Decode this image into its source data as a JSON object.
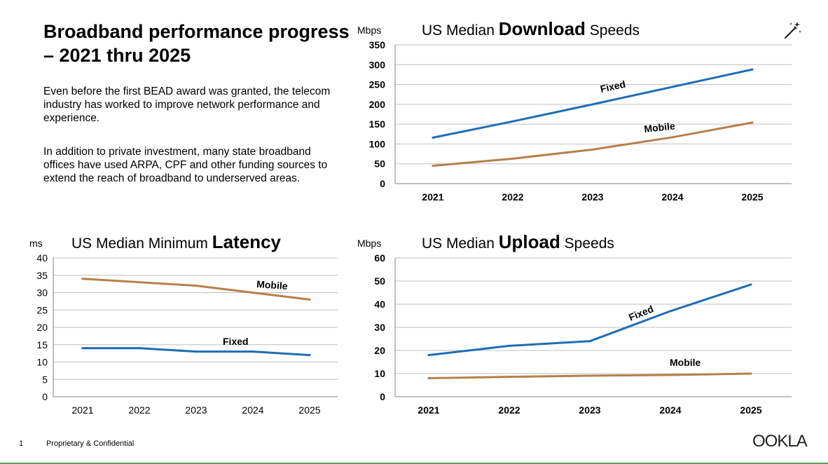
{
  "slide": {
    "title": "Broadband performance progress – 2021 thru 2025",
    "paragraphs": [
      "Even before the first BEAD award was granted, the telecom industry has worked to improve network performance and experience.",
      "In addition to private investment, many state broadband offices have used ARPA, CPF and other funding sources to extend the reach of broadband to underserved areas."
    ],
    "footer": {
      "page_number": "1",
      "text": "Proprietary & Confidential"
    },
    "logo_text": "OOKLA",
    "tool_icon": "magic-wand-icon"
  },
  "colors": {
    "fixed": "#1f6db3",
    "mobile": "#b5804c",
    "grid": "#bfbfbf",
    "axis": "#808080"
  },
  "chart_data": [
    {
      "id": "download",
      "type": "line",
      "title_prefix": "US Median ",
      "title_emphasis": "Download",
      "title_suffix": " Speeds",
      "ylabel": "Mbps",
      "categories": [
        "2021",
        "2022",
        "2023",
        "2024",
        "2025"
      ],
      "ylim": [
        0,
        350
      ],
      "yticks": [
        0,
        50,
        100,
        150,
        200,
        250,
        300,
        350
      ],
      "grid": true,
      "bold_ticks": true,
      "series": [
        {
          "name": "Fixed",
          "values": [
            116,
            157,
            200,
            244,
            288
          ]
        },
        {
          "name": "Mobile",
          "values": [
            45,
            63,
            86,
            117,
            154
          ]
        }
      ]
    },
    {
      "id": "latency",
      "type": "line",
      "title_prefix": "US Median Minimum ",
      "title_emphasis": "Latency",
      "title_suffix": "",
      "ylabel": "ms",
      "categories": [
        "2021",
        "2022",
        "2023",
        "2024",
        "2025"
      ],
      "ylim": [
        0,
        40
      ],
      "yticks": [
        0,
        5,
        10,
        15,
        20,
        25,
        30,
        35,
        40
      ],
      "grid": true,
      "bold_ticks": false,
      "series": [
        {
          "name": "Mobile",
          "values": [
            34,
            33,
            32,
            30,
            28
          ]
        },
        {
          "name": "Fixed",
          "values": [
            14,
            14,
            13,
            13,
            12
          ]
        }
      ]
    },
    {
      "id": "upload",
      "type": "line",
      "title_prefix": "US Median ",
      "title_emphasis": "Upload",
      "title_suffix": " Speeds",
      "ylabel": "Mbps",
      "categories": [
        "2021",
        "2022",
        "2023",
        "2024",
        "2025"
      ],
      "ylim": [
        0,
        60
      ],
      "yticks": [
        0,
        10,
        20,
        30,
        40,
        50,
        60
      ],
      "grid": true,
      "bold_ticks": true,
      "series": [
        {
          "name": "Fixed",
          "values": [
            18,
            22,
            24,
            37,
            48.5
          ]
        },
        {
          "name": "Mobile",
          "values": [
            8,
            8.6,
            9.1,
            9.4,
            10
          ]
        }
      ]
    }
  ]
}
